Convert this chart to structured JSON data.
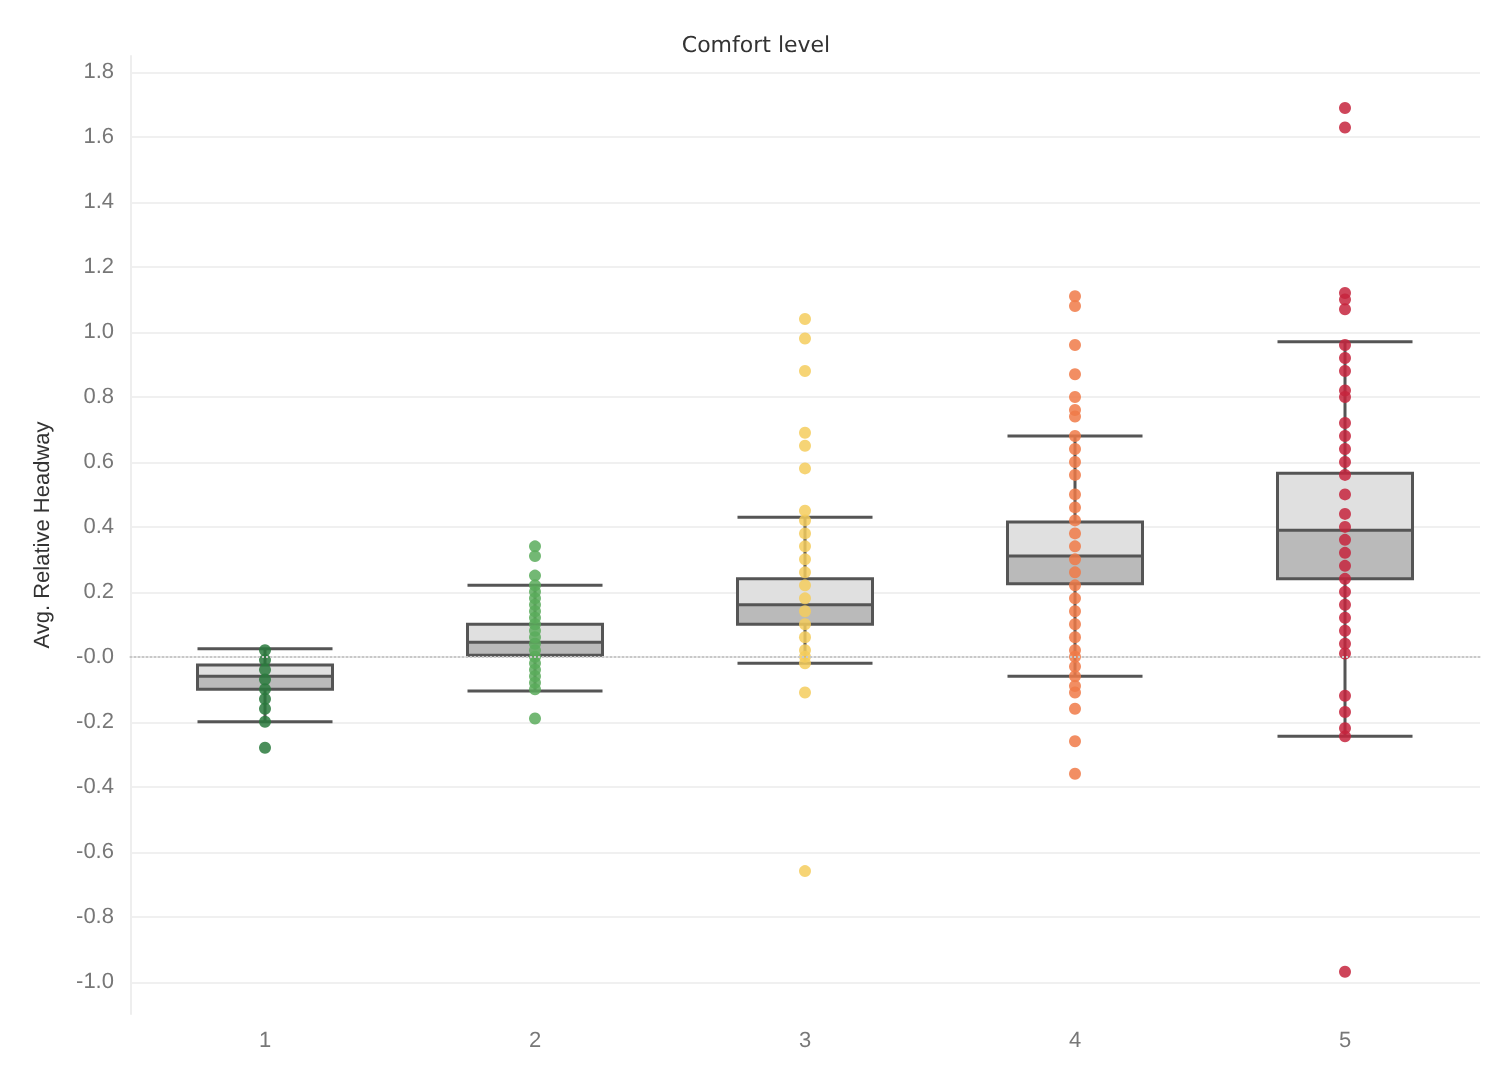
{
  "chart_data": {
    "type": "box",
    "xlabel": "Comfort level",
    "ylabel": "Avg. Relative Headway",
    "categories": [
      "1",
      "2",
      "3",
      "4",
      "5"
    ],
    "boxes": [
      {
        "low": -0.2,
        "q1": -0.1,
        "median": -0.06,
        "q3": -0.025,
        "high": 0.025
      },
      {
        "low": -0.105,
        "q1": 0.005,
        "median": 0.045,
        "q3": 0.1,
        "high": 0.22
      },
      {
        "low": -0.02,
        "q1": 0.1,
        "median": 0.16,
        "q3": 0.24,
        "high": 0.43
      },
      {
        "low": -0.06,
        "q1": 0.225,
        "median": 0.31,
        "q3": 0.415,
        "high": 0.68
      },
      {
        "low": -0.245,
        "q1": 0.24,
        "median": 0.39,
        "q3": 0.565,
        "high": 0.97
      }
    ],
    "series": [
      {
        "type": "scatter",
        "color": "#2a7a3d",
        "x": [
          "1",
          "1",
          "1",
          "1",
          "1",
          "1",
          "1",
          "1",
          "1"
        ],
        "values": [
          0.02,
          -0.01,
          -0.04,
          -0.07,
          -0.1,
          -0.13,
          -0.16,
          -0.2,
          -0.28
        ]
      },
      {
        "type": "scatter",
        "color": "#5aab5c",
        "x": [
          "2",
          "2",
          "2",
          "2",
          "2",
          "2",
          "2",
          "2",
          "2",
          "2",
          "2",
          "2",
          "2",
          "2",
          "2",
          "2",
          "2",
          "2",
          "2",
          "2",
          "2"
        ],
        "values": [
          0.34,
          0.31,
          0.25,
          0.22,
          0.2,
          0.18,
          0.16,
          0.14,
          0.12,
          0.1,
          0.08,
          0.06,
          0.04,
          0.02,
          0.0,
          -0.02,
          -0.04,
          -0.06,
          -0.08,
          -0.1,
          -0.19
        ]
      },
      {
        "type": "scatter",
        "color": "#f4cd5d",
        "x": [
          "3",
          "3",
          "3",
          "3",
          "3",
          "3",
          "3",
          "3",
          "3",
          "3",
          "3",
          "3",
          "3",
          "3",
          "3",
          "3",
          "3",
          "3",
          "3",
          "3",
          "3",
          "3"
        ],
        "values": [
          1.04,
          0.98,
          0.88,
          0.69,
          0.65,
          0.58,
          0.45,
          0.42,
          0.38,
          0.34,
          0.3,
          0.26,
          0.22,
          0.18,
          0.14,
          0.1,
          0.06,
          0.02,
          0.0,
          -0.02,
          -0.11,
          -0.66
        ]
      },
      {
        "type": "scatter",
        "color": "#f07a48",
        "x": [
          "4",
          "4",
          "4",
          "4",
          "4",
          "4",
          "4",
          "4",
          "4",
          "4",
          "4",
          "4",
          "4",
          "4",
          "4",
          "4",
          "4",
          "4",
          "4",
          "4",
          "4",
          "4",
          "4",
          "4",
          "4",
          "4",
          "4",
          "4",
          "4",
          "4",
          "4",
          "4"
        ],
        "values": [
          1.11,
          1.08,
          0.96,
          0.87,
          0.8,
          0.76,
          0.74,
          0.68,
          0.64,
          0.6,
          0.56,
          0.5,
          0.46,
          0.42,
          0.38,
          0.34,
          0.3,
          0.26,
          0.22,
          0.18,
          0.14,
          0.1,
          0.06,
          0.02,
          0.0,
          -0.03,
          -0.06,
          -0.09,
          -0.11,
          -0.16,
          -0.26,
          -0.36
        ]
      },
      {
        "type": "scatter",
        "color": "#c6253d",
        "x": [
          "5",
          "5",
          "5",
          "5",
          "5",
          "5",
          "5",
          "5",
          "5",
          "5",
          "5",
          "5",
          "5",
          "5",
          "5",
          "5",
          "5",
          "5",
          "5",
          "5",
          "5",
          "5",
          "5",
          "5",
          "5",
          "5",
          "5",
          "5",
          "5",
          "5",
          "5",
          "5",
          "5"
        ],
        "values": [
          1.69,
          1.63,
          1.12,
          1.1,
          1.07,
          0.96,
          0.92,
          0.88,
          0.82,
          0.8,
          0.72,
          0.68,
          0.64,
          0.6,
          0.56,
          0.5,
          0.44,
          0.4,
          0.36,
          0.32,
          0.28,
          0.24,
          0.2,
          0.16,
          0.12,
          0.08,
          0.04,
          0.01,
          -0.12,
          -0.17,
          -0.22,
          -0.245,
          -0.97
        ]
      }
    ],
    "ylim": [
      -1.1,
      1.85
    ],
    "yticks": [
      {
        "value": -1.0,
        "label": "-1.0"
      },
      {
        "value": -0.8,
        "label": "-0.8"
      },
      {
        "value": -0.6,
        "label": "-0.6"
      },
      {
        "value": -0.4,
        "label": "-0.4"
      },
      {
        "value": -0.2,
        "label": "-0.2"
      },
      {
        "value": 0,
        "label": "-0.0"
      },
      {
        "value": 0.2,
        "label": "0.2"
      },
      {
        "value": 0.4,
        "label": "0.4"
      },
      {
        "value": 0.6,
        "label": "0.6"
      },
      {
        "value": 0.8,
        "label": "0.8"
      },
      {
        "value": 1.0,
        "label": "1.0"
      },
      {
        "value": 1.2,
        "label": "1.2"
      },
      {
        "value": 1.4,
        "label": "1.4"
      },
      {
        "value": 1.6,
        "label": "1.6"
      },
      {
        "value": 1.8,
        "label": "1.8"
      }
    ],
    "ref_lines": [
      {
        "axis": "y",
        "value": 0,
        "color": "#c8c8c8",
        "line_style": "dotted"
      }
    ],
    "grid": "y",
    "marker": "circle"
  }
}
